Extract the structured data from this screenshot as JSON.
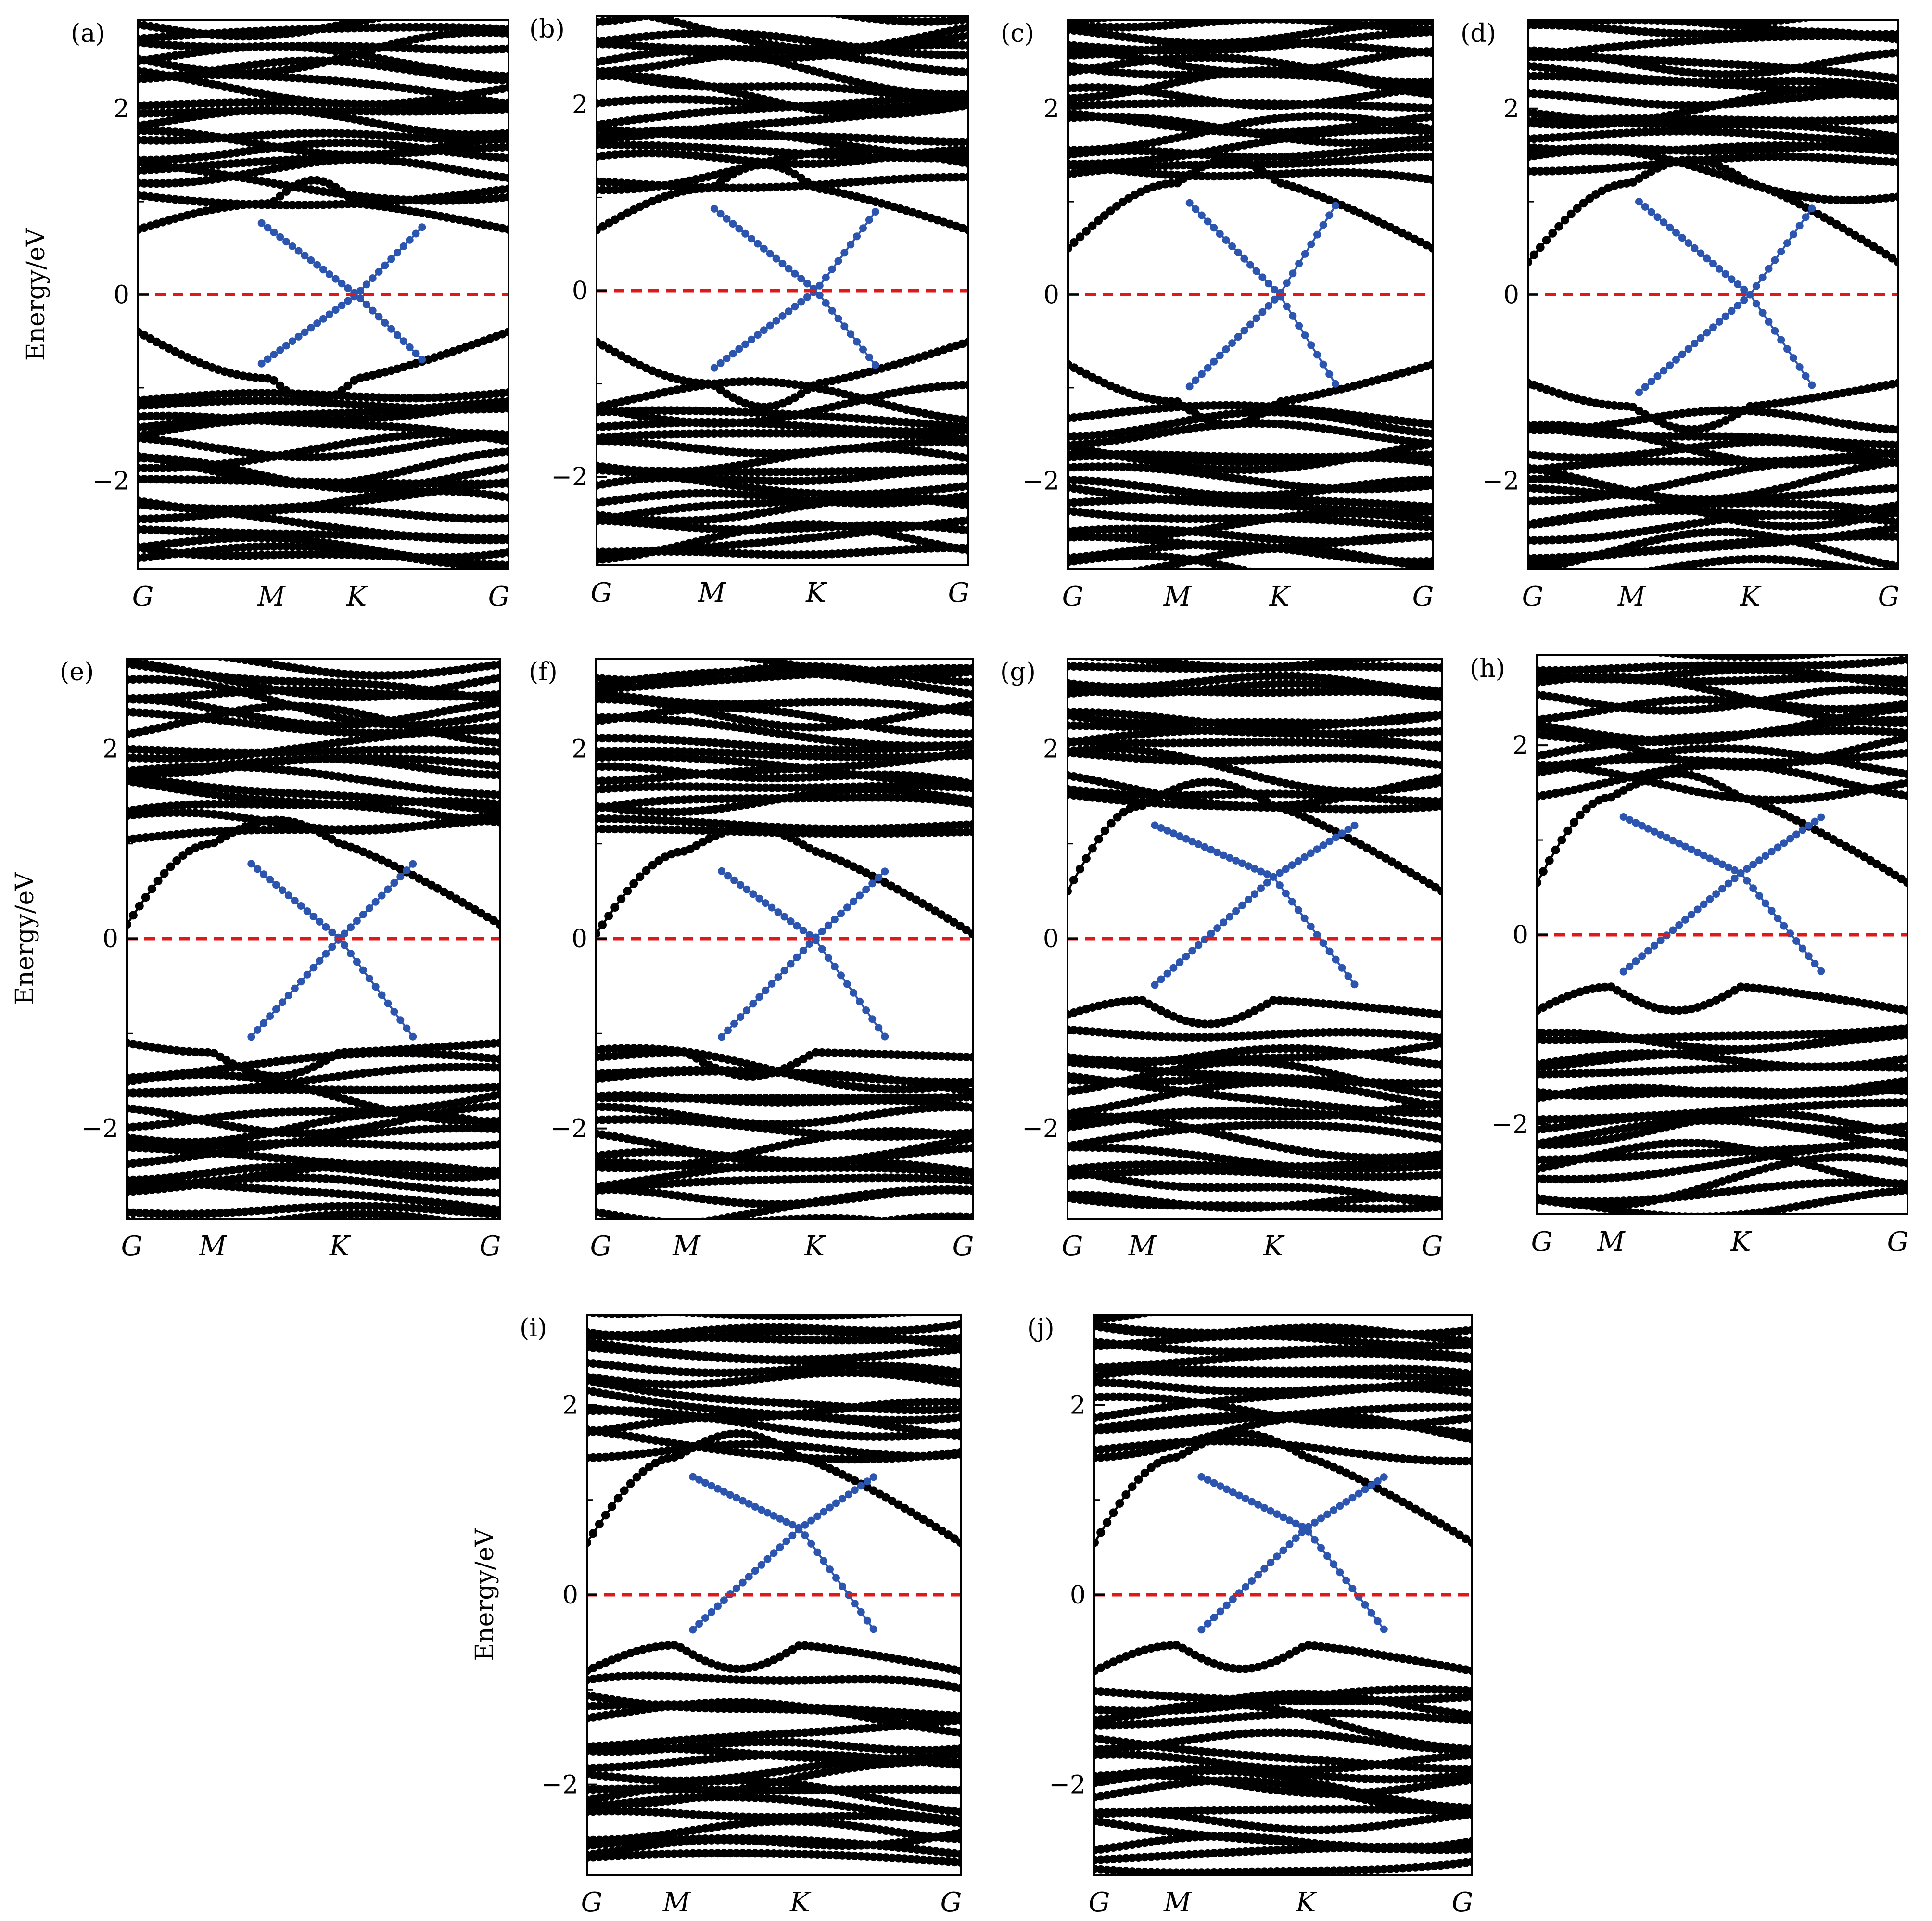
{
  "figure": {
    "colors": {
      "bands": "#000000",
      "highlight": "#2c55b0",
      "fermi": "#e01818",
      "frame": "#000000"
    },
    "common": {
      "ylabel": "Energy/eV",
      "ylim": [
        -2.95,
        2.95
      ],
      "yticks": [
        -2,
        0,
        2
      ],
      "ytick_labels": [
        "−2",
        "0",
        "2"
      ],
      "xlabels": [
        "G",
        "M",
        "K",
        "G"
      ]
    }
  },
  "chart_data": [
    {
      "id": "a",
      "type": "line",
      "label": "(a)",
      "xlabel": "",
      "ylabel": "Energy/eV",
      "ylim": [
        -2.95,
        2.95
      ],
      "x_ticks": [
        0,
        0.36,
        0.59,
        1
      ],
      "x_tick_labels": [
        "G",
        "M",
        "K",
        "G"
      ],
      "y_ticks": [
        -2,
        0,
        2
      ],
      "fermi_level": 0,
      "dirac_point": {
        "x": 0.59,
        "y": 0
      },
      "highlight_range": [
        0.33,
        0.78
      ],
      "highlight_band_top": 0.78,
      "highlight_band_bottom": -0.75,
      "cb_edge_at_G": 0.7,
      "vb_edge_at_G": -0.4,
      "band_series": []
    },
    {
      "id": "b",
      "type": "line",
      "label": "(b)",
      "xlabel": "",
      "ylabel": "",
      "ylim": [
        -2.95,
        2.95
      ],
      "x_ticks": [
        0,
        0.31,
        0.59,
        1
      ],
      "x_tick_labels": [
        "G",
        "M",
        "K",
        "G"
      ],
      "y_ticks": [
        -2,
        0,
        2
      ],
      "fermi_level": 0,
      "dirac_point": {
        "x": 0.59,
        "y": 0
      },
      "highlight_range": [
        0.31,
        0.76
      ],
      "highlight_band_top": 0.9,
      "highlight_band_bottom": -0.85,
      "cb_edge_at_G": 0.65,
      "vb_edge_at_G": -0.55,
      "band_series": []
    },
    {
      "id": "c",
      "type": "line",
      "label": "(c)",
      "xlabel": "",
      "ylabel": "",
      "ylim": [
        -2.95,
        2.95
      ],
      "x_ticks": [
        0,
        0.3,
        0.58,
        1
      ],
      "x_tick_labels": [
        "G",
        "M",
        "K",
        "G"
      ],
      "y_ticks": [
        -2,
        0,
        2
      ],
      "fermi_level": 0,
      "dirac_point": {
        "x": 0.58,
        "y": 0
      },
      "highlight_range": [
        0.33,
        0.74
      ],
      "highlight_band_top": 1.0,
      "highlight_band_bottom": -1.0,
      "cb_edge_at_G": 0.5,
      "vb_edge_at_G": -0.75,
      "band_series": []
    },
    {
      "id": "d",
      "type": "line",
      "label": "(d)",
      "xlabel": "",
      "ylabel": "",
      "ylim": [
        -2.95,
        2.95
      ],
      "x_ticks": [
        0,
        0.28,
        0.6,
        1
      ],
      "x_tick_labels": [
        "G",
        "M",
        "K",
        "G"
      ],
      "y_ticks": [
        -2,
        0,
        2
      ],
      "fermi_level": 0,
      "dirac_point": {
        "x": 0.6,
        "y": 0
      },
      "highlight_range": [
        0.3,
        0.78
      ],
      "highlight_band_top": 1.0,
      "highlight_band_bottom": -1.05,
      "cb_edge_at_G": 0.35,
      "vb_edge_at_G": -0.95,
      "band_series": []
    },
    {
      "id": "e",
      "type": "line",
      "label": "(e)",
      "xlabel": "",
      "ylabel": "Energy/eV",
      "ylim": [
        -2.95,
        2.95
      ],
      "x_ticks": [
        0,
        0.23,
        0.57,
        1
      ],
      "x_tick_labels": [
        "G",
        "M",
        "K",
        "G"
      ],
      "y_ticks": [
        -2,
        0,
        2
      ],
      "fermi_level": 0,
      "dirac_point": {
        "x": 0.57,
        "y": 0
      },
      "highlight_range": [
        0.33,
        0.77
      ],
      "highlight_band_top": 0.8,
      "highlight_band_bottom": -1.05,
      "cb_edge_at_G": 0.15,
      "vb_edge_at_G": -1.1,
      "band_series": []
    },
    {
      "id": "f",
      "type": "line",
      "label": "(f)",
      "xlabel": "",
      "ylabel": "",
      "ylim": [
        -2.95,
        2.95
      ],
      "x_ticks": [
        0,
        0.24,
        0.58,
        1
      ],
      "x_tick_labels": [
        "G",
        "M",
        "K",
        "G"
      ],
      "y_ticks": [
        -2,
        0,
        2
      ],
      "fermi_level": 0,
      "dirac_point": {
        "x": 0.58,
        "y": 0
      },
      "highlight_range": [
        0.33,
        0.77
      ],
      "highlight_band_top": 0.72,
      "highlight_band_bottom": -1.05,
      "cb_edge_at_G": 0.05,
      "vb_edge_at_G": -1.25,
      "band_series": []
    },
    {
      "id": "g",
      "type": "line",
      "label": "(g)",
      "xlabel": "",
      "ylabel": "",
      "ylim": [
        -2.95,
        2.95
      ],
      "x_ticks": [
        0,
        0.2,
        0.55,
        1
      ],
      "x_tick_labels": [
        "G",
        "M",
        "K",
        "G"
      ],
      "y_ticks": [
        -2,
        0,
        2
      ],
      "fermi_level": 0,
      "dirac_point": {
        "x": 0.55,
        "y": 0.65
      },
      "highlight_range": [
        0.23,
        0.77
      ],
      "highlight_band_top": 1.2,
      "highlight_band_bottom": -0.5,
      "cb_edge_at_G": 0.5,
      "vb_edge_at_G": -0.8,
      "band_series": []
    },
    {
      "id": "h",
      "type": "line",
      "label": "(h)",
      "xlabel": "",
      "ylabel": "",
      "ylim": [
        -2.95,
        2.95
      ],
      "x_ticks": [
        0,
        0.2,
        0.55,
        1
      ],
      "x_tick_labels": [
        "G",
        "M",
        "K",
        "G"
      ],
      "y_ticks": [
        -2,
        0,
        2
      ],
      "fermi_level": 0,
      "dirac_point": {
        "x": 0.55,
        "y": 0.65
      },
      "highlight_range": [
        0.23,
        0.77
      ],
      "highlight_band_top": 1.25,
      "highlight_band_bottom": -0.4,
      "cb_edge_at_G": 0.55,
      "vb_edge_at_G": -0.8,
      "band_series": []
    },
    {
      "id": "i",
      "type": "line",
      "label": "(i)",
      "xlabel": "",
      "ylabel": "Energy/eV",
      "ylim": [
        -2.95,
        2.95
      ],
      "x_ticks": [
        0,
        0.24,
        0.57,
        1
      ],
      "x_tick_labels": [
        "G",
        "M",
        "K",
        "G"
      ],
      "y_ticks": [
        -2,
        0,
        2
      ],
      "fermi_level": 0,
      "dirac_point": {
        "x": 0.57,
        "y": 0.7
      },
      "highlight_range": [
        0.28,
        0.77
      ],
      "highlight_band_top": 1.25,
      "highlight_band_bottom": -0.38,
      "cb_edge_at_G": 0.55,
      "vb_edge_at_G": -0.8,
      "band_series": []
    },
    {
      "id": "j",
      "type": "line",
      "label": "(j)",
      "xlabel": "",
      "ylabel": "",
      "ylim": [
        -2.95,
        2.95
      ],
      "x_ticks": [
        0,
        0.22,
        0.56,
        1
      ],
      "x_tick_labels": [
        "G",
        "M",
        "K",
        "G"
      ],
      "y_ticks": [
        -2,
        0,
        2
      ],
      "fermi_level": 0,
      "dirac_point": {
        "x": 0.56,
        "y": 0.7
      },
      "highlight_range": [
        0.28,
        0.77
      ],
      "highlight_band_top": 1.25,
      "highlight_band_bottom": -0.38,
      "cb_edge_at_G": 0.55,
      "vb_edge_at_G": -0.8,
      "band_series": []
    }
  ]
}
